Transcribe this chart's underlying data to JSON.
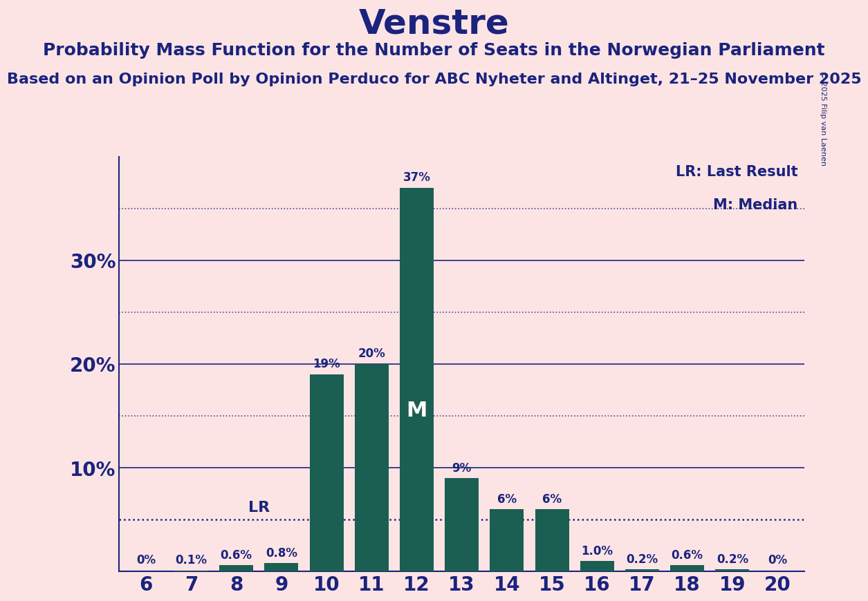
{
  "title": "Venstre",
  "subtitle": "Probability Mass Function for the Number of Seats in the Norwegian Parliament",
  "source_line": "Based on an Opinion Poll by Opinion Perduco for ABC Nyheter and Altinget, 21–25 November 2025",
  "copyright": "© 2025 Filip van Laenen",
  "seats": [
    6,
    7,
    8,
    9,
    10,
    11,
    12,
    13,
    14,
    15,
    16,
    17,
    18,
    19,
    20
  ],
  "probabilities": [
    0.0,
    0.1,
    0.6,
    0.8,
    19.0,
    20.0,
    37.0,
    9.0,
    6.0,
    6.0,
    1.0,
    0.2,
    0.6,
    0.2,
    0.0
  ],
  "bar_labels": [
    "0%",
    "0.1%",
    "0.6%",
    "0.8%",
    "19%",
    "20%",
    "37%",
    "9%",
    "6%",
    "6%",
    "1.0%",
    "0.2%",
    "0.6%",
    "0.2%",
    "0%"
  ],
  "bar_color": "#1b5e52",
  "background_color": "#fce4e4",
  "text_color": "#1a237e",
  "title_fontsize": 36,
  "subtitle_fontsize": 18,
  "source_fontsize": 16,
  "ylabel_ticks": [
    10,
    20,
    30
  ],
  "ylim": [
    0,
    40
  ],
  "lr_seat": 9,
  "lr_value": 5.0,
  "median_seat": 12,
  "legend_lr": "LR: Last Result",
  "legend_m": "M: Median",
  "dotted_lines": [
    5,
    15,
    25,
    35
  ],
  "solid_lines": [
    10,
    20,
    30
  ]
}
